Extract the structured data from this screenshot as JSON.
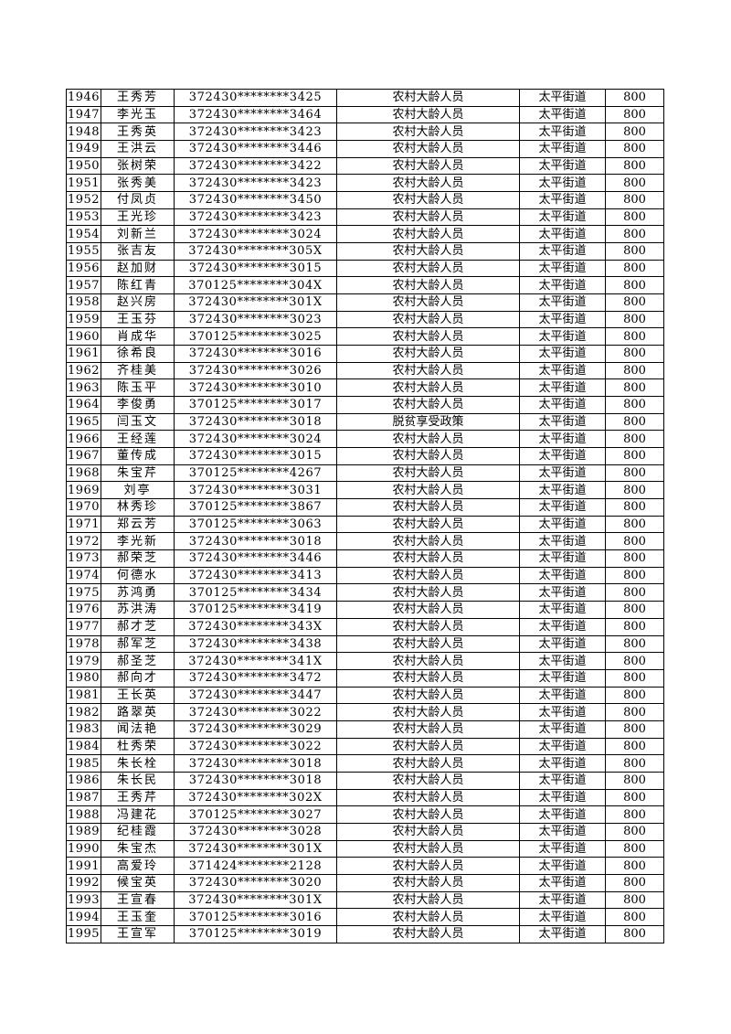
{
  "table": {
    "rows": [
      [
        "1946",
        "王秀芳",
        "372430********3425",
        "农村大龄人员",
        "太平街道",
        "800"
      ],
      [
        "1947",
        "李光玉",
        "372430********3464",
        "农村大龄人员",
        "太平街道",
        "800"
      ],
      [
        "1948",
        "王秀英",
        "372430********3423",
        "农村大龄人员",
        "太平街道",
        "800"
      ],
      [
        "1949",
        "王洪云",
        "372430********3446",
        "农村大龄人员",
        "太平街道",
        "800"
      ],
      [
        "1950",
        "张树荣",
        "372430********3422",
        "农村大龄人员",
        "太平街道",
        "800"
      ],
      [
        "1951",
        "张秀美",
        "372430********3423",
        "农村大龄人员",
        "太平街道",
        "800"
      ],
      [
        "1952",
        "付凤贞",
        "372430********3450",
        "农村大龄人员",
        "太平街道",
        "800"
      ],
      [
        "1953",
        "王光珍",
        "372430********3423",
        "农村大龄人员",
        "太平街道",
        "800"
      ],
      [
        "1954",
        "刘新兰",
        "372430********3024",
        "农村大龄人员",
        "太平街道",
        "800"
      ],
      [
        "1955",
        "张吉友",
        "372430********305X",
        "农村大龄人员",
        "太平街道",
        "800"
      ],
      [
        "1956",
        "赵加财",
        "372430********3015",
        "农村大龄人员",
        "太平街道",
        "800"
      ],
      [
        "1957",
        "陈红青",
        "370125********304X",
        "农村大龄人员",
        "太平街道",
        "800"
      ],
      [
        "1958",
        "赵兴房",
        "372430********301X",
        "农村大龄人员",
        "太平街道",
        "800"
      ],
      [
        "1959",
        "王玉芬",
        "372430********3023",
        "农村大龄人员",
        "太平街道",
        "800"
      ],
      [
        "1960",
        "肖成华",
        "370125********3025",
        "农村大龄人员",
        "太平街道",
        "800"
      ],
      [
        "1961",
        "徐希良",
        "372430********3016",
        "农村大龄人员",
        "太平街道",
        "800"
      ],
      [
        "1962",
        "齐桂美",
        "372430********3026",
        "农村大龄人员",
        "太平街道",
        "800"
      ],
      [
        "1963",
        "陈玉平",
        "372430********3010",
        "农村大龄人员",
        "太平街道",
        "800"
      ],
      [
        "1964",
        "李俊勇",
        "370125********3017",
        "农村大龄人员",
        "太平街道",
        "800"
      ],
      [
        "1965",
        "闫玉文",
        "372430********3018",
        "脱贫享受政策",
        "太平街道",
        "800"
      ],
      [
        "1966",
        "王经莲",
        "372430********3024",
        "农村大龄人员",
        "太平街道",
        "800"
      ],
      [
        "1967",
        "董传成",
        "372430********3015",
        "农村大龄人员",
        "太平街道",
        "800"
      ],
      [
        "1968",
        "朱宝芹",
        "370125********4267",
        "农村大龄人员",
        "太平街道",
        "800"
      ],
      [
        "1969",
        "刘亭",
        "372430********3031",
        "农村大龄人员",
        "太平街道",
        "800"
      ],
      [
        "1970",
        "林秀珍",
        "370125********3867",
        "农村大龄人员",
        "太平街道",
        "800"
      ],
      [
        "1971",
        "郑云芳",
        "370125********3063",
        "农村大龄人员",
        "太平街道",
        "800"
      ],
      [
        "1972",
        "李光新",
        "372430********3018",
        "农村大龄人员",
        "太平街道",
        "800"
      ],
      [
        "1973",
        "郝荣芝",
        "372430********3446",
        "农村大龄人员",
        "太平街道",
        "800"
      ],
      [
        "1974",
        "何德水",
        "372430********3413",
        "农村大龄人员",
        "太平街道",
        "800"
      ],
      [
        "1975",
        "苏鸿勇",
        "370125********3434",
        "农村大龄人员",
        "太平街道",
        "800"
      ],
      [
        "1976",
        "苏洪涛",
        "370125********3419",
        "农村大龄人员",
        "太平街道",
        "800"
      ],
      [
        "1977",
        "郝才芝",
        "372430********343X",
        "农村大龄人员",
        "太平街道",
        "800"
      ],
      [
        "1978",
        "郝军芝",
        "372430********3438",
        "农村大龄人员",
        "太平街道",
        "800"
      ],
      [
        "1979",
        "郝圣芝",
        "372430********341X",
        "农村大龄人员",
        "太平街道",
        "800"
      ],
      [
        "1980",
        "郝向才",
        "372430********3472",
        "农村大龄人员",
        "太平街道",
        "800"
      ],
      [
        "1981",
        "王长英",
        "372430********3447",
        "农村大龄人员",
        "太平街道",
        "800"
      ],
      [
        "1982",
        "路翠英",
        "372430********3022",
        "农村大龄人员",
        "太平街道",
        "800"
      ],
      [
        "1983",
        "闻法艳",
        "372430********3029",
        "农村大龄人员",
        "太平街道",
        "800"
      ],
      [
        "1984",
        "杜秀荣",
        "372430********3022",
        "农村大龄人员",
        "太平街道",
        "800"
      ],
      [
        "1985",
        "朱长栓",
        "372430********3018",
        "农村大龄人员",
        "太平街道",
        "800"
      ],
      [
        "1986",
        "朱长民",
        "372430********3018",
        "农村大龄人员",
        "太平街道",
        "800"
      ],
      [
        "1987",
        "王秀芹",
        "372430********302X",
        "农村大龄人员",
        "太平街道",
        "800"
      ],
      [
        "1988",
        "冯建花",
        "370125********3027",
        "农村大龄人员",
        "太平街道",
        "800"
      ],
      [
        "1989",
        "纪桂霞",
        "372430********3028",
        "农村大龄人员",
        "太平街道",
        "800"
      ],
      [
        "1990",
        "朱宝杰",
        "372430********301X",
        "农村大龄人员",
        "太平街道",
        "800"
      ],
      [
        "1991",
        "高爱玲",
        "371424********2128",
        "农村大龄人员",
        "太平街道",
        "800"
      ],
      [
        "1992",
        "候宝英",
        "372430********3020",
        "农村大龄人员",
        "太平街道",
        "800"
      ],
      [
        "1993",
        "王宣春",
        "372430********301X",
        "农村大龄人员",
        "太平街道",
        "800"
      ],
      [
        "1994",
        "王玉奎",
        "370125********3016",
        "农村大龄人员",
        "太平街道",
        "800"
      ],
      [
        "1995",
        "王宣军",
        "370125********3019",
        "农村大龄人员",
        "太平街道",
        "800"
      ]
    ]
  }
}
